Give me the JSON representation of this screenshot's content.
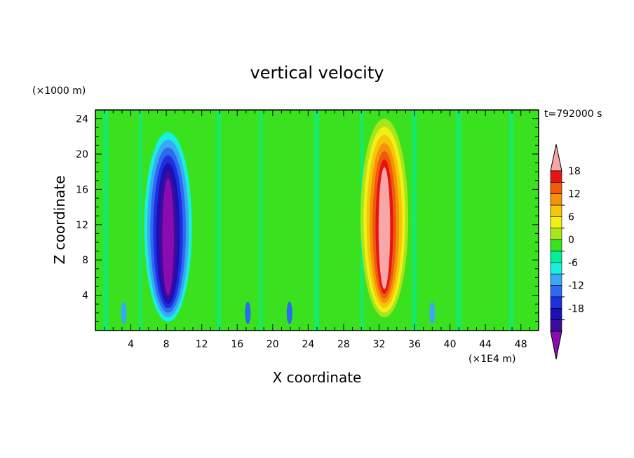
{
  "chart_data": {
    "type": "heatmap",
    "title": "vertical velocity",
    "xlabel": "X coordinate",
    "ylabel": "Z coordinate",
    "x_units": "(×1E4 m)",
    "y_units": "(×1000 m)",
    "time_label": "t=792000 s",
    "xlim": [
      0,
      50
    ],
    "ylim": [
      0,
      25
    ],
    "x_ticks": [
      4,
      8,
      12,
      16,
      20,
      24,
      28,
      32,
      36,
      40,
      44,
      48
    ],
    "y_ticks": [
      4,
      8,
      12,
      16,
      20,
      24
    ],
    "colorbar": {
      "levels": [
        -21,
        -18,
        -15,
        -12,
        -9,
        -6,
        -3,
        0,
        3,
        6,
        9,
        12,
        15,
        18,
        21
      ],
      "tick_labels": [
        "18",
        "12",
        "6",
        "0",
        "-6",
        "-12",
        "-18"
      ],
      "colors": [
        "#8a0bb0",
        "#3c0c9a",
        "#1c0fb3",
        "#1e2fe0",
        "#2c6af0",
        "#3aa8f6",
        "#17f0e0",
        "#00f09c",
        "#3ae11e",
        "#a8e61a",
        "#f0f014",
        "#f5c60a",
        "#f5920a",
        "#f05a0a",
        "#e81212",
        "#f8a6a6"
      ],
      "extend": "both"
    },
    "features": [
      {
        "kind": "downdraft",
        "x": 8.2,
        "z_bottom": 1,
        "z_top": 22.5,
        "min_value": -21
      },
      {
        "kind": "updraft",
        "x": 32.6,
        "z_bottom": 1.5,
        "z_top": 24,
        "max_value": 21
      }
    ],
    "grid": false
  }
}
